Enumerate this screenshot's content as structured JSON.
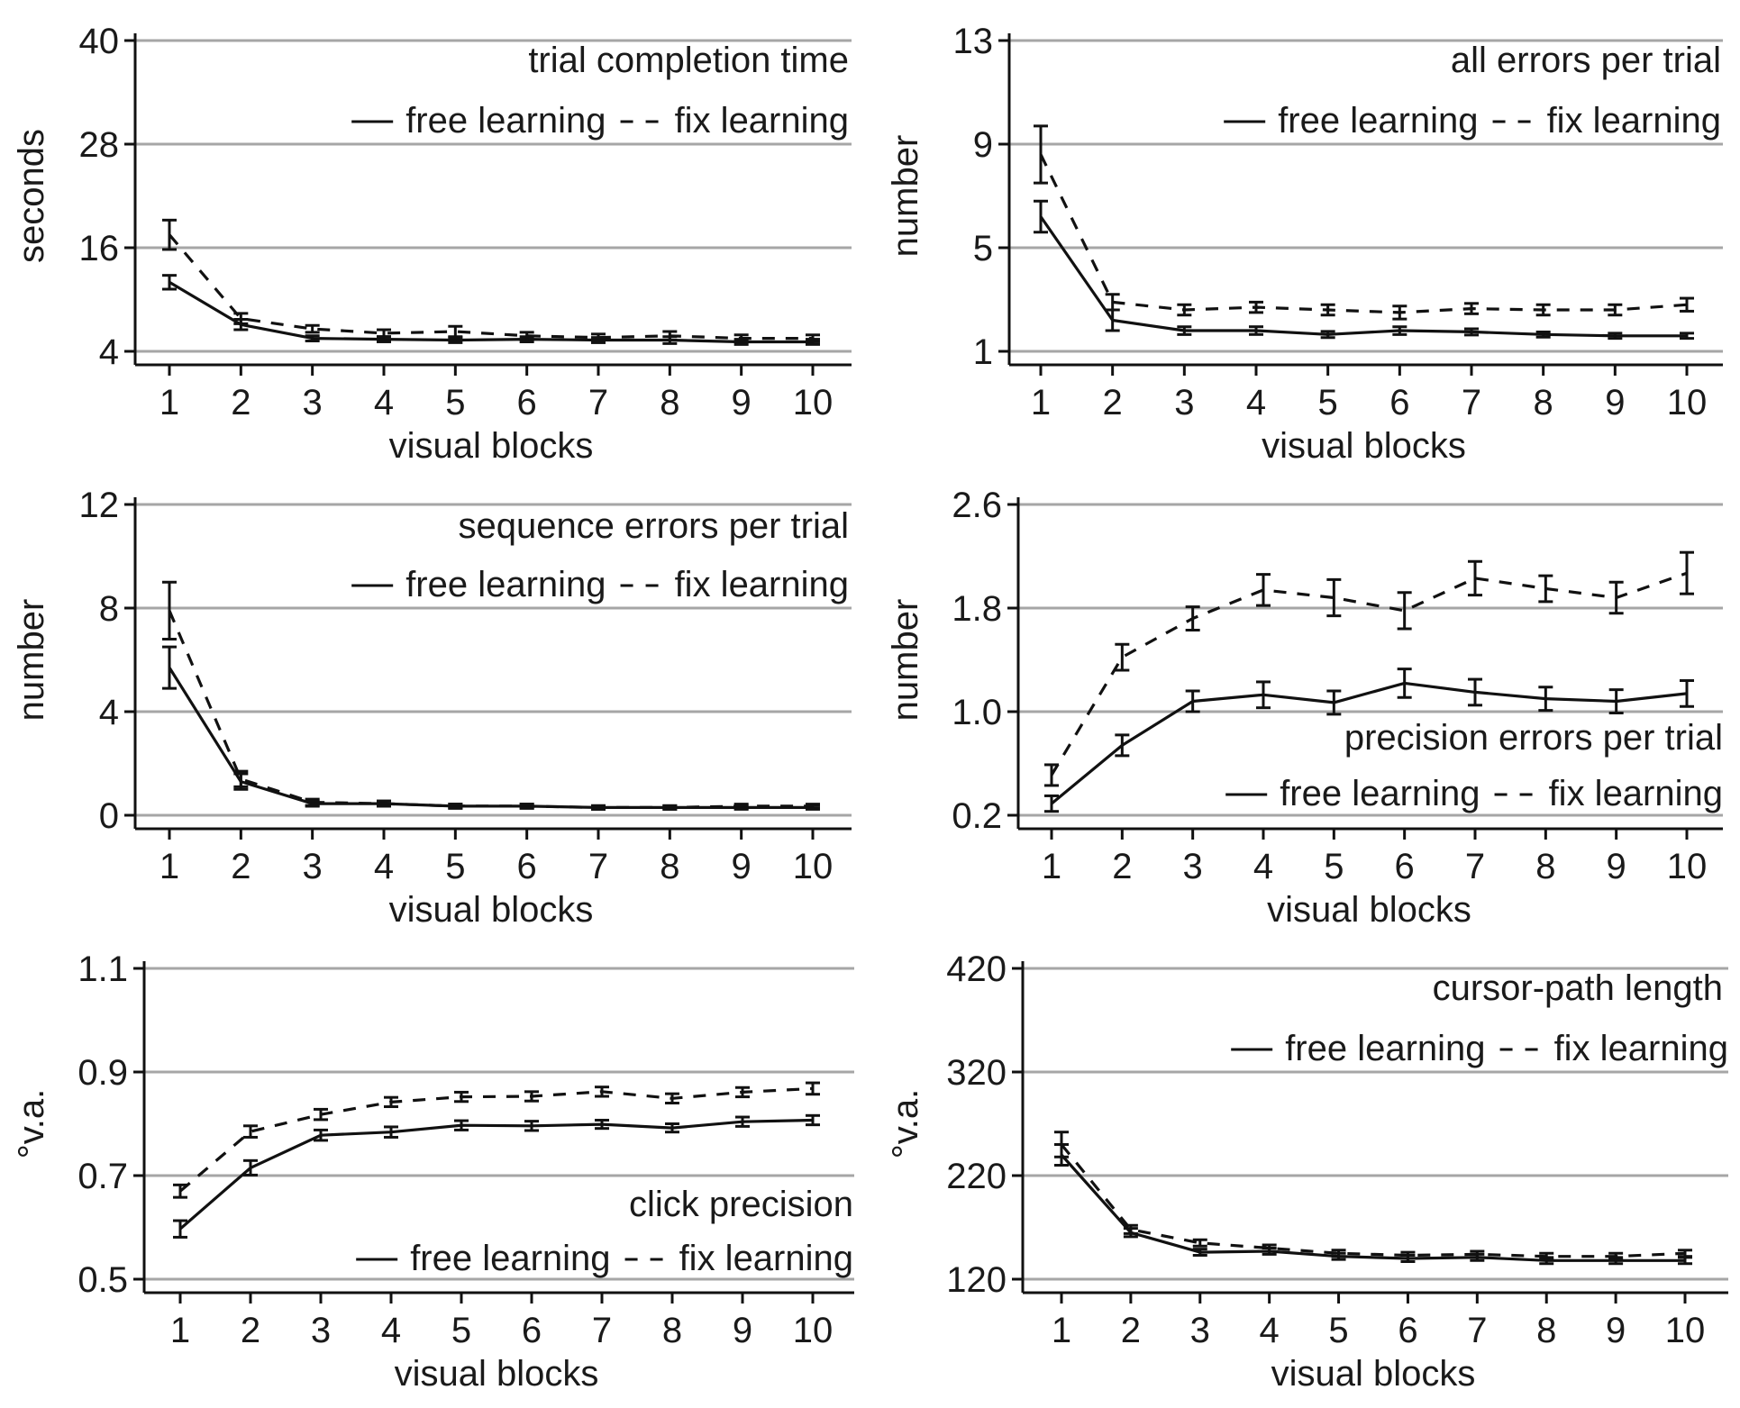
{
  "figure": {
    "x_categories": [
      "1",
      "2",
      "3",
      "4",
      "5",
      "6",
      "7",
      "8",
      "9",
      "10"
    ],
    "series_names": [
      "free learning",
      "fix learning"
    ],
    "colors": {
      "line": "#111111",
      "grid": "#a6a6a6",
      "background": "#ffffff"
    }
  },
  "chart_data": [
    {
      "type": "line",
      "title": "trial completion time",
      "xlabel": "visual blocks",
      "ylabel": "seconds",
      "ylim": [
        4,
        40
      ],
      "yticks": [
        "4",
        "16",
        "28",
        "40"
      ],
      "categories": [
        "1",
        "2",
        "3",
        "4",
        "5",
        "6",
        "7",
        "8",
        "9",
        "10"
      ],
      "legend": "top-right",
      "series": [
        {
          "name": "free learning",
          "style": "solid",
          "values": [
            12.0,
            7.1,
            5.5,
            5.4,
            5.3,
            5.4,
            5.3,
            5.3,
            5.1,
            5.1
          ],
          "errors": [
            0.8,
            0.6,
            0.3,
            0.3,
            0.3,
            0.3,
            0.3,
            0.4,
            0.3,
            0.3
          ]
        },
        {
          "name": "fix learning",
          "style": "dashed",
          "values": [
            17.5,
            7.8,
            6.6,
            6.1,
            6.3,
            5.8,
            5.6,
            5.8,
            5.5,
            5.5
          ],
          "errors": [
            1.7,
            0.6,
            0.4,
            0.4,
            0.6,
            0.4,
            0.4,
            0.5,
            0.4,
            0.4
          ]
        }
      ]
    },
    {
      "type": "line",
      "title": "all errors per trial",
      "xlabel": "visual blocks",
      "ylabel": "number",
      "ylim": [
        1,
        13
      ],
      "yticks": [
        "1",
        "5",
        "9",
        "13"
      ],
      "categories": [
        "1",
        "2",
        "3",
        "4",
        "5",
        "6",
        "7",
        "8",
        "9",
        "10"
      ],
      "legend": "top-right",
      "series": [
        {
          "name": "free learning",
          "style": "solid",
          "values": [
            6.2,
            2.2,
            1.8,
            1.8,
            1.65,
            1.8,
            1.75,
            1.65,
            1.6,
            1.6
          ],
          "errors": [
            0.6,
            0.4,
            0.15,
            0.15,
            0.12,
            0.15,
            0.12,
            0.1,
            0.1,
            0.1
          ]
        },
        {
          "name": "fix learning",
          "style": "dashed",
          "values": [
            8.6,
            2.9,
            2.6,
            2.7,
            2.6,
            2.5,
            2.65,
            2.6,
            2.6,
            2.8
          ],
          "errors": [
            1.1,
            0.3,
            0.2,
            0.2,
            0.2,
            0.25,
            0.2,
            0.2,
            0.2,
            0.25
          ]
        }
      ]
    },
    {
      "type": "line",
      "title": "sequence errors per trial",
      "xlabel": "visual blocks",
      "ylabel": "number",
      "ylim": [
        0,
        12
      ],
      "yticks": [
        "0",
        "4",
        "8",
        "12"
      ],
      "categories": [
        "1",
        "2",
        "3",
        "4",
        "5",
        "6",
        "7",
        "8",
        "9",
        "10"
      ],
      "legend": "top-right",
      "series": [
        {
          "name": "free learning",
          "style": "solid",
          "values": [
            5.7,
            1.3,
            0.45,
            0.45,
            0.35,
            0.35,
            0.3,
            0.3,
            0.3,
            0.3
          ],
          "errors": [
            0.8,
            0.3,
            0.1,
            0.1,
            0.08,
            0.08,
            0.07,
            0.07,
            0.07,
            0.07
          ]
        },
        {
          "name": "fix learning",
          "style": "dashed",
          "values": [
            7.9,
            1.4,
            0.5,
            0.45,
            0.35,
            0.35,
            0.3,
            0.3,
            0.35,
            0.35
          ],
          "errors": [
            1.1,
            0.3,
            0.12,
            0.1,
            0.08,
            0.08,
            0.07,
            0.07,
            0.08,
            0.08
          ]
        }
      ]
    },
    {
      "type": "line",
      "title": "precision errors per trial",
      "xlabel": "visual blocks",
      "ylabel": "number",
      "ylim": [
        0.2,
        2.6
      ],
      "yticks": [
        "0.2",
        "1.0",
        "1.8",
        "2.6"
      ],
      "categories": [
        "1",
        "2",
        "3",
        "4",
        "5",
        "6",
        "7",
        "8",
        "9",
        "10"
      ],
      "legend": "bottom-right",
      "series": [
        {
          "name": "free learning",
          "style": "solid",
          "values": [
            0.29,
            0.74,
            1.08,
            1.13,
            1.07,
            1.22,
            1.15,
            1.1,
            1.08,
            1.14
          ],
          "errors": [
            0.06,
            0.08,
            0.08,
            0.1,
            0.09,
            0.11,
            0.1,
            0.09,
            0.09,
            0.1
          ]
        },
        {
          "name": "fix learning",
          "style": "dashed",
          "values": [
            0.51,
            1.42,
            1.72,
            1.94,
            1.88,
            1.78,
            2.03,
            1.95,
            1.88,
            2.07
          ],
          "errors": [
            0.08,
            0.1,
            0.09,
            0.12,
            0.14,
            0.14,
            0.13,
            0.1,
            0.12,
            0.16
          ]
        }
      ]
    },
    {
      "type": "line",
      "title": "click precision",
      "xlabel": "visual blocks",
      "ylabel": "°v.a.",
      "ylim": [
        0.5,
        1.1
      ],
      "yticks": [
        "0.5",
        "0.7",
        "0.9",
        "1.1"
      ],
      "categories": [
        "1",
        "2",
        "3",
        "4",
        "5",
        "6",
        "7",
        "8",
        "9",
        "10"
      ],
      "legend": "bottom-right",
      "series": [
        {
          "name": "free learning",
          "style": "solid",
          "values": [
            0.597,
            0.715,
            0.778,
            0.784,
            0.797,
            0.796,
            0.799,
            0.792,
            0.804,
            0.807
          ],
          "errors": [
            0.016,
            0.014,
            0.01,
            0.01,
            0.009,
            0.009,
            0.008,
            0.008,
            0.009,
            0.009
          ]
        },
        {
          "name": "fix learning",
          "style": "dashed",
          "values": [
            0.67,
            0.785,
            0.818,
            0.842,
            0.852,
            0.853,
            0.862,
            0.849,
            0.861,
            0.868
          ],
          "errors": [
            0.012,
            0.011,
            0.01,
            0.009,
            0.009,
            0.009,
            0.009,
            0.009,
            0.009,
            0.011
          ]
        }
      ]
    },
    {
      "type": "line",
      "title": "cursor-path length",
      "xlabel": "visual blocks",
      "ylabel": "°v.a.",
      "ylim": [
        120,
        420
      ],
      "yticks": [
        "120",
        "220",
        "320",
        "420"
      ],
      "categories": [
        "1",
        "2",
        "3",
        "4",
        "5",
        "6",
        "7",
        "8",
        "9",
        "10"
      ],
      "legend": "top-right",
      "series": [
        {
          "name": "free learning",
          "style": "solid",
          "values": [
            240,
            165,
            146,
            147,
            142,
            140,
            141,
            138,
            138,
            138
          ],
          "errors": [
            10,
            4,
            3,
            3,
            3,
            3,
            3,
            3,
            3,
            3
          ]
        },
        {
          "name": "fix learning",
          "style": "dashed",
          "values": [
            250,
            168,
            155,
            150,
            145,
            143,
            144,
            142,
            142,
            145
          ],
          "errors": [
            12,
            4,
            3,
            3,
            3,
            3,
            3,
            3,
            3,
            3
          ]
        }
      ]
    }
  ]
}
